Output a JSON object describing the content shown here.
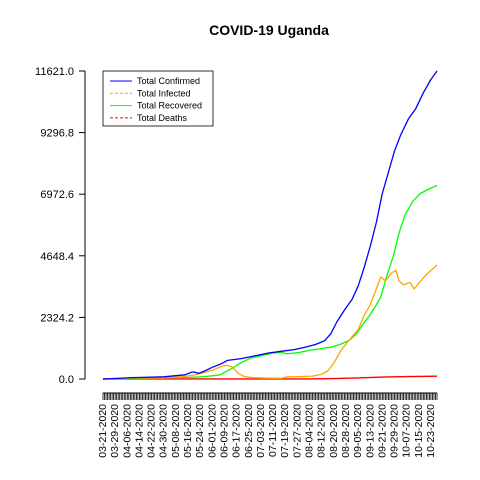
{
  "chart_data": {
    "type": "line",
    "title": "COVID-19 Uganda",
    "xlabel": "",
    "ylabel": "",
    "ylim": [
      0,
      11621.0
    ],
    "yticks": [
      "0.0",
      "2324.2",
      "4648.4",
      "6972.6",
      "9296.8",
      "11621.0"
    ],
    "ytick_values": [
      0,
      2324.2,
      4648.4,
      6972.6,
      9296.8,
      11621.0
    ],
    "x_range": [
      "03-21-2020",
      "10-27-2020"
    ],
    "xticks": [
      "03-21-2020",
      "03-29-2020",
      "04-06-2020",
      "04-14-2020",
      "04-22-2020",
      "04-30-2020",
      "05-08-2020",
      "05-16-2020",
      "05-24-2020",
      "06-01-2020",
      "06-09-2020",
      "06-17-2020",
      "06-25-2020",
      "07-03-2020",
      "07-11-2020",
      "07-19-2020",
      "07-27-2020",
      "08-04-2020",
      "08-12-2020",
      "08-20-2020",
      "08-28-2020",
      "09-05-2020",
      "09-13-2020",
      "09-21-2020",
      "09-29-2020",
      "10-07-2020",
      "10-15-2020",
      "10-23-2020"
    ],
    "grid": false,
    "legend_position": "top-left",
    "series": [
      {
        "name": "Total Confirmed",
        "color": "#0000ff",
        "line_style": "solid",
        "points": [
          [
            "03-21-2020",
            1
          ],
          [
            "04-10-2020",
            53
          ],
          [
            "04-30-2020",
            83
          ],
          [
            "05-14-2020",
            160
          ],
          [
            "05-18-2020",
            248
          ],
          [
            "05-20-2020",
            264
          ],
          [
            "05-23-2020",
            212
          ],
          [
            "05-27-2020",
            300
          ],
          [
            "06-01-2020",
            440
          ],
          [
            "06-06-2020",
            550
          ],
          [
            "06-11-2020",
            700
          ],
          [
            "06-20-2020",
            770
          ],
          [
            "06-29-2020",
            870
          ],
          [
            "07-08-2020",
            980
          ],
          [
            "07-17-2020",
            1050
          ],
          [
            "07-25-2020",
            1110
          ],
          [
            "08-01-2020",
            1200
          ],
          [
            "08-08-2020",
            1300
          ],
          [
            "08-14-2020",
            1450
          ],
          [
            "08-18-2020",
            1700
          ],
          [
            "08-22-2020",
            2150
          ],
          [
            "08-27-2020",
            2600
          ],
          [
            "09-01-2020",
            3000
          ],
          [
            "09-05-2020",
            3500
          ],
          [
            "09-09-2020",
            4200
          ],
          [
            "09-13-2020",
            5000
          ],
          [
            "09-17-2020",
            5900
          ],
          [
            "09-21-2020",
            7000
          ],
          [
            "09-25-2020",
            7800
          ],
          [
            "09-29-2020",
            8600
          ],
          [
            "10-03-2020",
            9200
          ],
          [
            "10-08-2020",
            9800
          ],
          [
            "10-13-2020",
            10200
          ],
          [
            "10-18-2020",
            10800
          ],
          [
            "10-23-2020",
            11300
          ],
          [
            "10-27-2020",
            11621
          ]
        ]
      },
      {
        "name": "Total Infected",
        "color": "#ffa500",
        "line_style": "dashed",
        "points": [
          [
            "03-21-2020",
            1
          ],
          [
            "04-10-2020",
            40
          ],
          [
            "04-30-2020",
            35
          ],
          [
            "05-14-2020",
            100
          ],
          [
            "05-20-2020",
            150
          ],
          [
            "05-26-2020",
            230
          ],
          [
            "06-01-2020",
            330
          ],
          [
            "06-06-2020",
            450
          ],
          [
            "06-10-2020",
            520
          ],
          [
            "06-14-2020",
            460
          ],
          [
            "06-18-2020",
            220
          ],
          [
            "06-22-2020",
            90
          ],
          [
            "06-28-2020",
            50
          ],
          [
            "07-08-2020",
            30
          ],
          [
            "07-17-2020",
            30
          ],
          [
            "07-20-2020",
            80
          ],
          [
            "07-28-2020",
            90
          ],
          [
            "08-06-2020",
            110
          ],
          [
            "08-12-2020",
            180
          ],
          [
            "08-16-2020",
            300
          ],
          [
            "08-20-2020",
            600
          ],
          [
            "08-25-2020",
            1100
          ],
          [
            "09-01-2020",
            1600
          ],
          [
            "09-05-2020",
            1850
          ],
          [
            "09-09-2020",
            2400
          ],
          [
            "09-13-2020",
            2800
          ],
          [
            "09-17-2020",
            3400
          ],
          [
            "09-20-2020",
            3850
          ],
          [
            "09-23-2020",
            3700
          ],
          [
            "09-27-2020",
            4000
          ],
          [
            "09-30-2020",
            4100
          ],
          [
            "10-02-2020",
            3700
          ],
          [
            "10-05-2020",
            3550
          ],
          [
            "10-09-2020",
            3650
          ],
          [
            "10-12-2020",
            3400
          ],
          [
            "10-17-2020",
            3750
          ],
          [
            "10-22-2020",
            4050
          ],
          [
            "10-27-2020",
            4300
          ]
        ]
      },
      {
        "name": "Total Recovered",
        "color": "#00ff00",
        "line_style": "solid",
        "points": [
          [
            "03-21-2020",
            0
          ],
          [
            "04-10-2020",
            20
          ],
          [
            "04-30-2020",
            50
          ],
          [
            "05-16-2020",
            60
          ],
          [
            "05-24-2020",
            80
          ],
          [
            "06-01-2020",
            120
          ],
          [
            "06-06-2020",
            160
          ],
          [
            "06-14-2020",
            400
          ],
          [
            "06-20-2020",
            620
          ],
          [
            "06-26-2020",
            780
          ],
          [
            "07-05-2020",
            900
          ],
          [
            "07-11-2020",
            980
          ],
          [
            "07-17-2020",
            1000
          ],
          [
            "07-20-2020",
            950
          ],
          [
            "07-28-2020",
            1000
          ],
          [
            "08-04-2020",
            1080
          ],
          [
            "08-12-2020",
            1150
          ],
          [
            "08-18-2020",
            1200
          ],
          [
            "08-24-2020",
            1300
          ],
          [
            "08-30-2020",
            1450
          ],
          [
            "09-04-2020",
            1700
          ],
          [
            "09-08-2020",
            2050
          ],
          [
            "09-12-2020",
            2350
          ],
          [
            "09-16-2020",
            2700
          ],
          [
            "09-20-2020",
            3100
          ],
          [
            "09-24-2020",
            3900
          ],
          [
            "09-28-2020",
            4600
          ],
          [
            "10-02-2020",
            5500
          ],
          [
            "10-06-2020",
            6200
          ],
          [
            "10-11-2020",
            6700
          ],
          [
            "10-16-2020",
            7000
          ],
          [
            "10-21-2020",
            7150
          ],
          [
            "10-27-2020",
            7300
          ]
        ]
      },
      {
        "name": "Total Deaths",
        "color": "#ff0000",
        "line_style": "dashed",
        "points": [
          [
            "03-21-2020",
            0
          ],
          [
            "07-20-2020",
            2
          ],
          [
            "08-04-2020",
            5
          ],
          [
            "08-20-2020",
            15
          ],
          [
            "09-05-2020",
            40
          ],
          [
            "09-21-2020",
            70
          ],
          [
            "10-07-2020",
            90
          ],
          [
            "10-27-2020",
            104
          ]
        ]
      }
    ]
  }
}
